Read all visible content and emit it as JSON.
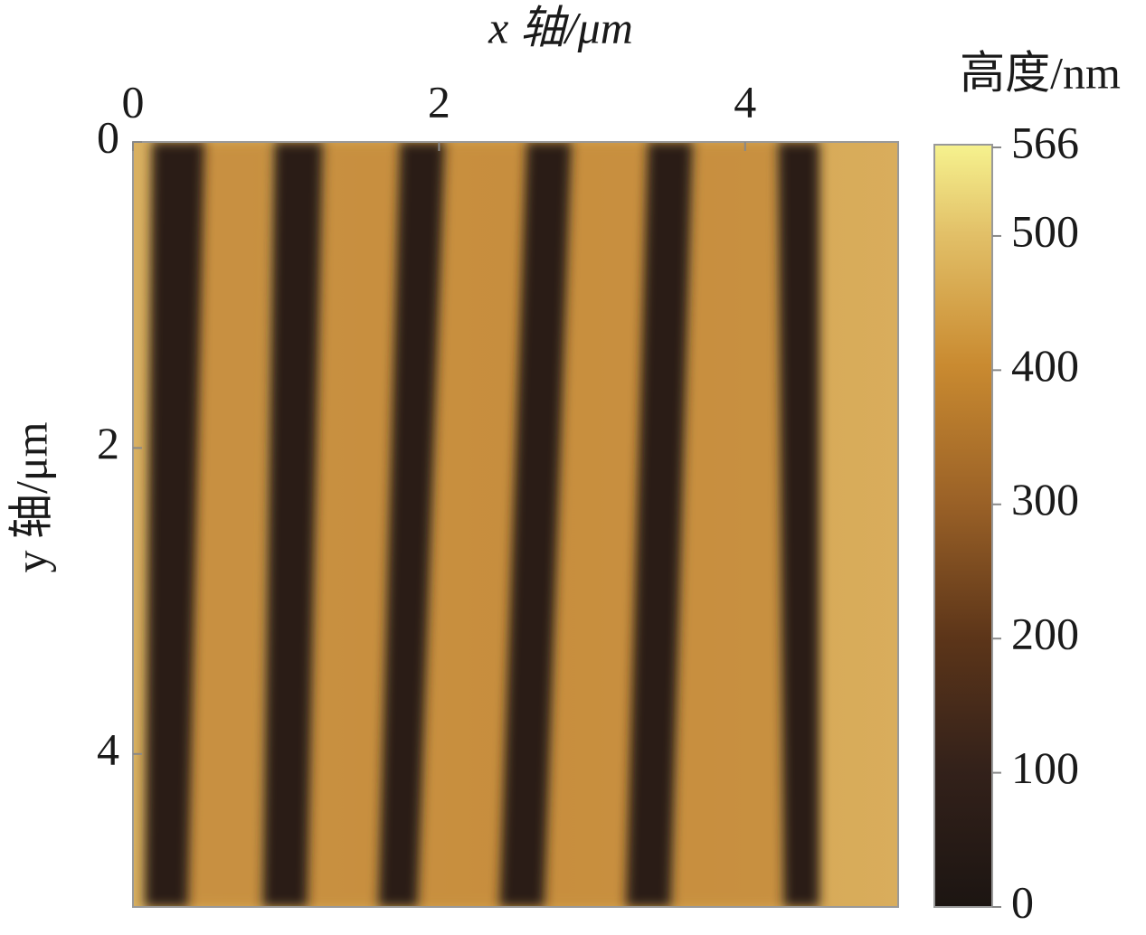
{
  "chart_data": {
    "type": "heatmap",
    "xlabel": "x 轴/μm",
    "ylabel": "y 轴/μm",
    "xlim": [
      0,
      5
    ],
    "xticks": [
      0,
      2,
      4
    ],
    "ylim": [
      0,
      5
    ],
    "yticks": [
      0,
      2,
      4
    ],
    "y_inverted": true,
    "colorbar": {
      "label": "高度/nm",
      "clim": [
        0,
        566
      ],
      "ticks": [
        0,
        100,
        200,
        300,
        400,
        500,
        566
      ]
    }
  }
}
